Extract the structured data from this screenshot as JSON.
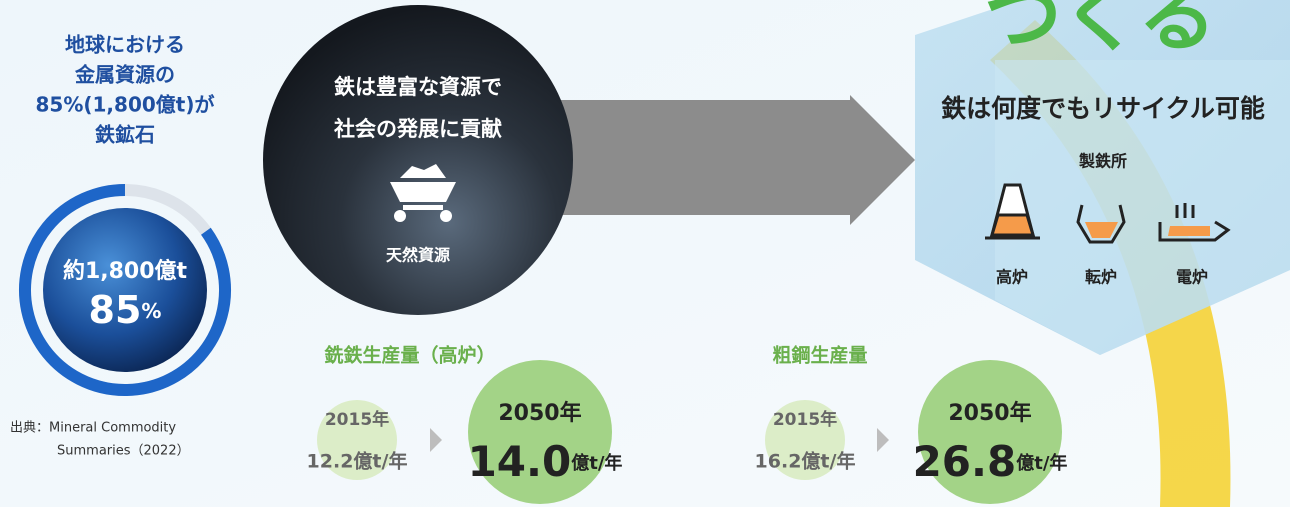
{
  "left": {
    "heading": [
      "地球における",
      "金属資源の",
      "85%(1,800億t)が",
      "鉄鉱石"
    ],
    "globe": {
      "amount": "約1,800億t",
      "percent": 85,
      "unit": "%"
    },
    "source": [
      "出典：Mineral Commodity",
      "Summaries（2022）"
    ]
  },
  "center": {
    "lines": [
      "鉄は豊富な資源で",
      "社会の発展に貢献"
    ],
    "icon_label": "天然資源"
  },
  "right": {
    "headline": "つくる",
    "title": "鉄は何度でもリサイクル可能",
    "subtitle": "製鉄所",
    "furnaces": [
      "高炉",
      "転炉",
      "電炉"
    ]
  },
  "production": [
    {
      "title": "銑鉄生産量（高炉）",
      "from_year": "2015年",
      "from_value": "12.2億t/年",
      "to_year": "2050年",
      "to_value": "14.0",
      "to_unit": "億t/年"
    },
    {
      "title": "粗鋼生産量",
      "from_year": "2015年",
      "from_value": "16.2億t/年",
      "to_year": "2050年",
      "to_value": "26.8",
      "to_unit": "億t/年"
    }
  ]
}
